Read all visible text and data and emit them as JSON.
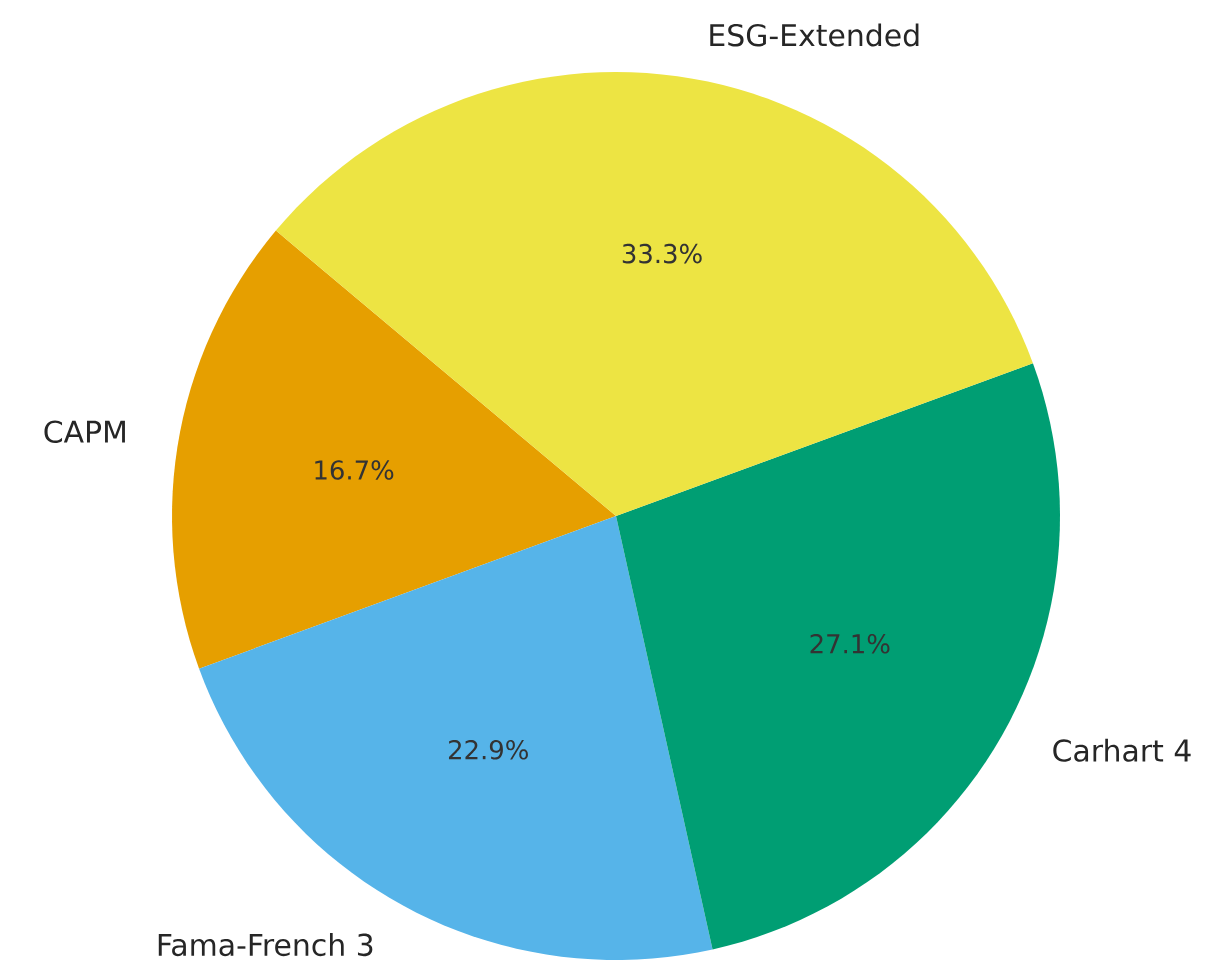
{
  "chart_data": {
    "type": "pie",
    "categories": [
      "CAPM",
      "Fama-French 3",
      "Carhart 4",
      "ESG-Extended"
    ],
    "values": [
      16.7,
      22.9,
      27.1,
      33.3
    ],
    "value_labels": [
      "16.7%",
      "22.9%",
      "27.1%",
      "33.3%"
    ],
    "colors": [
      "#e69f00",
      "#56b4e9",
      "#009e73",
      "#ede443"
    ]
  }
}
